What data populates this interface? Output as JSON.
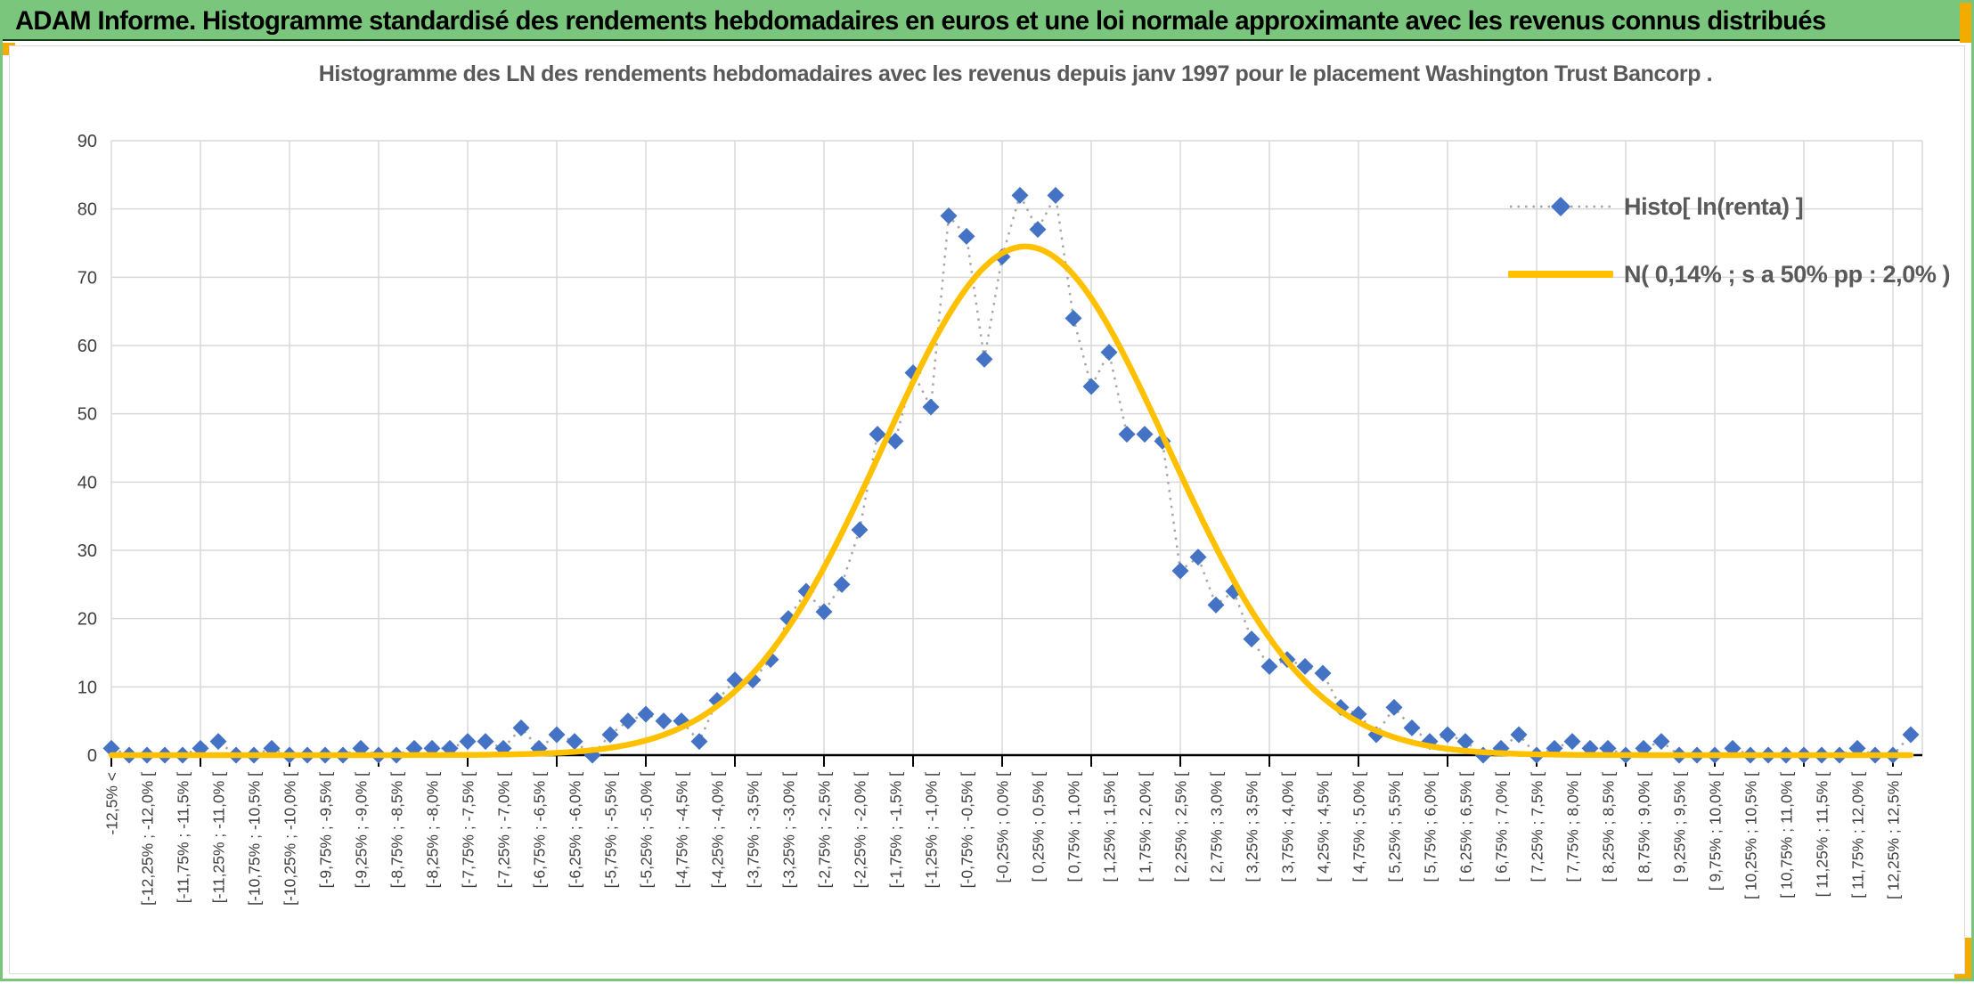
{
  "banner": {
    "title": "ADAM Informe. Histogramme standardisé des rendements hebdomadaires en euros et une loi normale approximante avec les revenus connus distribués"
  },
  "colors": {
    "banner_green": "#7BC67D",
    "accent_gold": "#F2AC00",
    "histo_blue": "#4472C4",
    "normal_curve_gold": "#FFC000",
    "grid_gray": "#D9D9D9",
    "title_gray": "#595959",
    "tick_label_gray": "#404040",
    "connector_gray": "#A6A6A6",
    "axis_black": "#000000"
  },
  "chart_data": {
    "type": "line",
    "title": "Histogramme des LN des rendements hebdomadaires avec les revenus depuis janv 1997 pour le placement Washington Trust Bancorp .",
    "xlabel": "",
    "ylabel": "",
    "ylim": [
      0,
      90
    ],
    "y_ticks": [
      0,
      10,
      20,
      30,
      40,
      50,
      60,
      70,
      80,
      90
    ],
    "grid": true,
    "legend_position": "top-right inside plot",
    "x_tick_rotation": -90,
    "categories": [
      "-12,5% <",
      "",
      "[-12,25% ; -12,0% [",
      "",
      "[-11,75% ; -11,5% [",
      "",
      "[-11,25% ; -11,0% [",
      "",
      "[-10,75% ; -10,5% [",
      "",
      "[-10,25% ; -10,0% [",
      "",
      "[-9,75% ; -9,5% [",
      "",
      "[-9,25% ; -9,0% [",
      "",
      "[-8,75% ; -8,5% [",
      "",
      "[-8,25% ; -8,0% [",
      "",
      "[-7,75% ; -7,5% [",
      "",
      "[-7,25% ; -7,0% [",
      "",
      "[-6,75% ; -6,5% [",
      "",
      "[-6,25% ; -6,0% [",
      "",
      "[-5,75% ; -5,5% [",
      "",
      "[-5,25% ; -5,0% [",
      "",
      "[-4,75% ; -4,5% [",
      "",
      "[-4,25% ; -4,0% [",
      "",
      "[-3,75% ; -3,5% [",
      "",
      "[-3,25% ; -3,0% [",
      "",
      "[-2,75% ; -2,5% [",
      "",
      "[-2,25% ; -2,0% [",
      "",
      "[-1,75% ; -1,5% [",
      "",
      "[-1,25% ; -1,0% [",
      "",
      "[-0,75% ; -0,5% [",
      "",
      "[-0,25% ; 0,0% [",
      "",
      "[ 0,25% ; 0,5% [",
      "",
      "[ 0,75% ; 1,0% [",
      "",
      "[ 1,25% ; 1,5% [",
      "",
      "[ 1,75% ; 2,0% [",
      "",
      "[ 2,25% ; 2,5% [",
      "",
      "[ 2,75% ; 3,0% [",
      "",
      "[ 3,25% ; 3,5% [",
      "",
      "[ 3,75% ; 4,0% [",
      "",
      "[ 4,25% ; 4,5% [",
      "",
      "[ 4,75% ; 5,0% [",
      "",
      "[ 5,25% ; 5,5% [",
      "",
      "[ 5,75% ; 6,0% [",
      "",
      "[ 6,25% ; 6,5% [",
      "",
      "[ 6,75% ; 7,0% [",
      "",
      "[ 7,25% ; 7,5% [",
      "",
      "[ 7,75% ; 8,0% [",
      "",
      "[ 8,25% ; 8,5% [",
      "",
      "[ 8,75% ; 9,0% [",
      "",
      "[ 9,25% ; 9,5% [",
      "",
      "[ 9,75% ; 10,0% [",
      "",
      "[ 10,25% ; 10,5% [",
      "",
      "[ 10,75% ; 11,0% [",
      "",
      "[ 11,25% ; 11,5% [",
      "",
      "[ 11,75% ; 12,0% [",
      "",
      "[ 12,25% ; 12,5% [",
      ""
    ],
    "series": [
      {
        "name": "Histo[ ln(renta) ]",
        "type": "scatter-with-dotted-line",
        "marker": "diamond",
        "color": "#4472C4",
        "line_color": "#A6A6A6",
        "values": [
          1,
          0,
          0,
          0,
          0,
          1,
          2,
          0,
          0,
          1,
          0,
          0,
          0,
          0,
          1,
          0,
          0,
          1,
          1,
          1,
          2,
          2,
          1,
          4,
          1,
          3,
          2,
          0,
          3,
          5,
          6,
          5,
          5,
          2,
          8,
          11,
          11,
          14,
          20,
          24,
          21,
          25,
          33,
          47,
          46,
          56,
          51,
          79,
          76,
          58,
          73,
          82,
          77,
          82,
          64,
          54,
          59,
          47,
          47,
          46,
          27,
          29,
          22,
          24,
          17,
          13,
          14,
          13,
          12,
          7,
          6,
          3,
          7,
          4,
          2,
          3,
          2,
          0,
          1,
          3,
          0,
          1,
          2,
          1,
          1,
          0,
          1,
          2,
          0,
          0,
          0,
          1,
          0,
          0,
          0,
          0,
          0,
          0,
          1,
          0,
          0,
          3
        ]
      },
      {
        "name": "N( 0,14% ; s a 50% pp : 2,0% )",
        "type": "smooth-gaussian-curve",
        "color": "#FFC000",
        "gaussian": {
          "amplitude": 74.5,
          "center_category_index": 51.3,
          "sigma_in_categories": 8
        },
        "mean_label": "0,14%",
        "sigma_label": "2,0%"
      }
    ]
  }
}
